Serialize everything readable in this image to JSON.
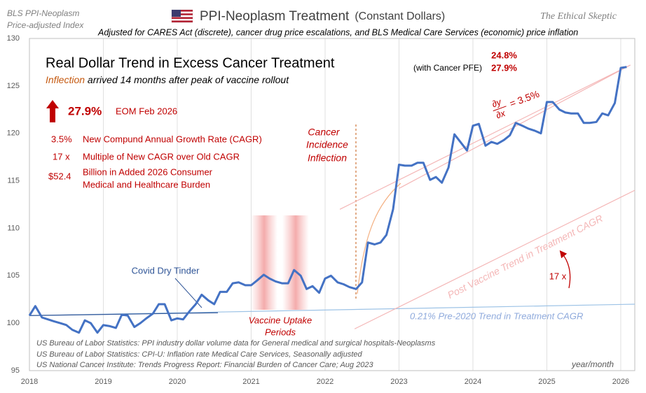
{
  "chart_data": {
    "type": "line",
    "title": "PPI-Neoplasm Treatment",
    "title_note": "(Constant Dollars)",
    "subtitle": "Adjusted for CARES Act (discrete),  cancer drug price escalations,  and BLS Medical Care Services  (economic)  price  inflation",
    "x": [
      2018,
      2018.08,
      2018.17,
      2018.25,
      2018.33,
      2018.42,
      2018.5,
      2018.58,
      2018.67,
      2018.75,
      2018.83,
      2018.92,
      2019,
      2019.08,
      2019.17,
      2019.25,
      2019.33,
      2019.42,
      2019.5,
      2019.58,
      2019.67,
      2019.75,
      2019.83,
      2019.92,
      2020,
      2020.08,
      2020.17,
      2020.25,
      2020.33,
      2020.42,
      2020.5,
      2020.58,
      2020.67,
      2020.75,
      2020.83,
      2020.92,
      2021,
      2021.08,
      2021.17,
      2021.25,
      2021.33,
      2021.42,
      2021.5,
      2021.58,
      2021.67,
      2021.75,
      2021.83,
      2021.92,
      2022,
      2022.08,
      2022.17,
      2022.25,
      2022.33,
      2022.42,
      2022.5,
      2022.58,
      2022.67,
      2022.75,
      2022.83,
      2022.92,
      2023,
      2023.08,
      2023.17,
      2023.25,
      2023.33,
      2023.42,
      2023.5,
      2023.58,
      2023.67,
      2023.75,
      2023.83,
      2023.92,
      2024,
      2024.08,
      2024.17,
      2024.25,
      2024.33,
      2024.42,
      2024.5,
      2024.58,
      2024.67,
      2024.75,
      2024.83,
      2024.92,
      2025,
      2025.08,
      2025.17,
      2025.25,
      2025.33,
      2025.42,
      2025.5,
      2025.58,
      2025.67,
      2025.75,
      2025.83,
      2025.92,
      2026,
      2026.08
    ],
    "values": [
      100.8,
      101.8,
      100.6,
      100.4,
      100.2,
      100.0,
      99.8,
      99.3,
      99.0,
      100.3,
      100.0,
      99.0,
      99.8,
      99.7,
      99.5,
      100.9,
      100.8,
      99.6,
      100.0,
      100.5,
      101.0,
      102.0,
      102.0,
      100.3,
      100.5,
      100.4,
      101.3,
      102.0,
      103.0,
      102.4,
      102.0,
      103.3,
      103.3,
      104.2,
      104.3,
      104.0,
      104.0,
      104.5,
      105.1,
      104.7,
      104.4,
      104.2,
      104.2,
      105.6,
      105.0,
      103.6,
      103.9,
      103.2,
      104.7,
      105.0,
      104.3,
      104.1,
      103.8,
      103.6,
      104.3,
      108.5,
      108.3,
      108.5,
      109.3,
      112.0,
      116.7,
      116.6,
      116.6,
      116.9,
      116.9,
      115.1,
      115.4,
      114.8,
      116.4,
      119.9,
      119.1,
      118.2,
      120.8,
      121.0,
      118.7,
      119.1,
      118.9,
      119.3,
      119.8,
      121.1,
      120.8,
      120.5,
      120.3,
      120.0,
      123.3,
      123.3,
      122.5,
      122.2,
      122.1,
      122.1,
      121.1,
      121.1,
      121.2,
      122.1,
      121.9,
      123.2,
      126.9,
      127.0
    ],
    "color": "#4472c4",
    "trend_lines": [
      {
        "x": [
          2018,
          2026.19
        ],
        "values": [
          100.8,
          102.0
        ],
        "color": "#9dc3e6"
      },
      {
        "x": [
          2018,
          2020.55
        ],
        "values": [
          100.8,
          101.1
        ],
        "color": "#2f5597"
      },
      {
        "x": [
          2022.4,
          2026.19
        ],
        "values": [
          99.4,
          114.0
        ],
        "color": "#f4b6b6"
      },
      {
        "x": [
          2022.2,
          2026.13
        ],
        "values": [
          112.0,
          127.2
        ],
        "color": "#f4b6b6"
      },
      {
        "x": [
          2023.0,
          2026.13
        ],
        "values": [
          114.2,
          127.2
        ],
        "color": "#f4b6b6"
      }
    ],
    "xlim": [
      2018,
      2026.19
    ],
    "xticks": [
      2018,
      2019,
      2020,
      2021,
      2022,
      2023,
      2024,
      2025,
      2026
    ],
    "ylim": [
      95,
      130
    ],
    "yticks": [
      95,
      100,
      105,
      110,
      115,
      120,
      125,
      130
    ],
    "grid": true,
    "annotations": [
      "BLS PPI-Neoplasm",
      "Price-adjusted  Index",
      "The Ethical Skeptic",
      "Real Dollar Trend in Excess Cancer Treatment",
      "Inflection",
      " arrived 14 months after peak of vaccine rollout",
      "27.9%",
      "EOM Feb 2026",
      "3.5%",
      "New Compund Annual Growth Rate (CAGR)",
      "17 x",
      "Multiple of New CAGR over Old CAGR",
      "$52.4",
      "Billion in Added 2026 Consumer",
      "Medical and Healthcare Burden",
      "24.8%",
      "(with Cancer PFE)",
      "27.9%",
      "∂y",
      "∂x",
      "= 3.5%",
      "Cancer",
      "Incidence",
      "Inflection",
      "Covid Dry Tinder",
      "Vaccine Uptake",
      "Periods",
      "Post Vaccine Trend in Treatment CAGR",
      "17 x",
      "0.21%  Pre-2020 Trend in Treatment CAGR",
      "US Bureau of Labor Statistics: PPI industry dollar volume data for General medical and surgical hospitals-Neoplasms",
      "US Bureau of Labor Statistics: CPI-U: Inflation rate Medical Care Services, Seasonally adjusted",
      "US National Cancer Institute: Trends Progress Report: Financial Burden of Cancer Care; Aug 2023",
      "year/month"
    ]
  }
}
